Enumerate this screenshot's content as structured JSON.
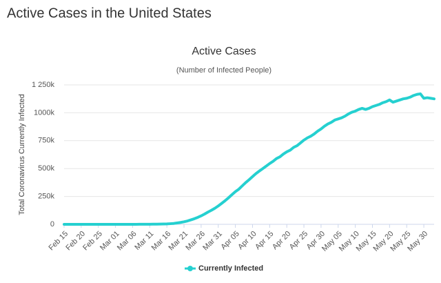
{
  "page_title": "Active Cases in the United States",
  "chart_data": {
    "type": "line",
    "title": "Active Cases",
    "subtitle": "(Number of Infected People)",
    "y_label": "Total Coronavirus Currently Infected",
    "categories": [
      "Feb 15",
      null,
      null,
      null,
      null,
      "Feb 20",
      null,
      null,
      null,
      null,
      "Feb 25",
      null,
      null,
      null,
      null,
      "Mar 01",
      null,
      null,
      null,
      null,
      "Mar 06",
      null,
      null,
      null,
      null,
      "Mar 11",
      null,
      null,
      null,
      null,
      "Mar 16",
      null,
      null,
      null,
      null,
      "Mar 21",
      null,
      null,
      null,
      null,
      "Mar 26",
      null,
      null,
      null,
      null,
      "Mar 31",
      null,
      null,
      null,
      null,
      "Apr 05",
      null,
      null,
      null,
      null,
      "Apr 10",
      null,
      null,
      null,
      null,
      "Apr 15",
      null,
      null,
      null,
      null,
      "Apr 20",
      null,
      null,
      null,
      null,
      "Apr 25",
      null,
      null,
      null,
      null,
      "Apr 30",
      null,
      null,
      null,
      null,
      "May 05",
      null,
      null,
      null,
      null,
      "May 10",
      null,
      null,
      null,
      null,
      "May 15",
      null,
      null,
      null,
      null,
      "May 20",
      null,
      null,
      null,
      null,
      "May 25",
      null,
      null,
      null,
      null,
      "May 30",
      null,
      null,
      null
    ],
    "series": [
      {
        "name": "Currently Infected",
        "color": "#25d0d0",
        "values": [
          12,
          12,
          12,
          12,
          12,
          12,
          20,
          20,
          20,
          20,
          30,
          40,
          45,
          50,
          55,
          60,
          80,
          100,
          110,
          150,
          200,
          300,
          430,
          560,
          700,
          900,
          1200,
          1600,
          2100,
          2900,
          4000,
          5800,
          8000,
          12500,
          17000,
          23000,
          30000,
          40000,
          50000,
          62000,
          76000,
          92000,
          110000,
          126000,
          144000,
          165000,
          188000,
          212000,
          238000,
          266000,
          293000,
          315000,
          345000,
          374000,
          400000,
          428000,
          455000,
          478000,
          500000,
          522000,
          545000,
          565000,
          590000,
          605000,
          630000,
          650000,
          665000,
          690000,
          705000,
          730000,
          755000,
          775000,
          790000,
          810000,
          835000,
          855000,
          880000,
          900000,
          915000,
          935000,
          945000,
          955000,
          970000,
          990000,
          1005000,
          1015000,
          1030000,
          1040000,
          1030000,
          1040000,
          1055000,
          1065000,
          1075000,
          1090000,
          1100000,
          1115000,
          1095000,
          1105000,
          1115000,
          1125000,
          1130000,
          1140000,
          1155000,
          1165000,
          1170000,
          1130000,
          1135000,
          1130000,
          1125000
        ]
      }
    ],
    "ylim": [
      0,
      1250000
    ],
    "yticks": [
      0,
      {
        "value": 250000,
        "label": "250k"
      },
      {
        "value": 500000,
        "label": "500k"
      },
      {
        "value": 750000,
        "label": "750k"
      },
      {
        "value": 1000000,
        "label": "1000k"
      },
      {
        "value": 1250000,
        "label": "1 250k"
      }
    ],
    "grid": true
  }
}
